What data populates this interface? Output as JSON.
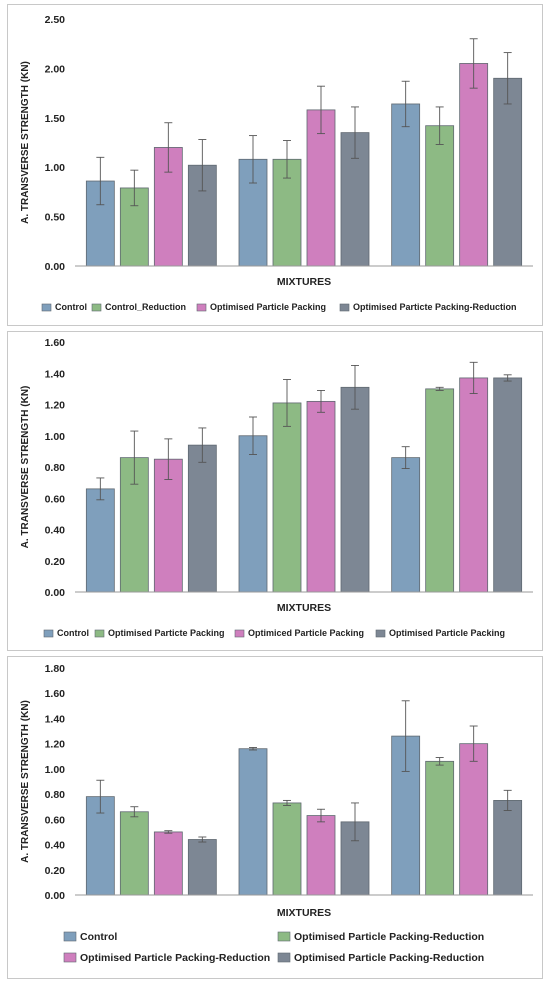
{
  "chart_data": [
    {
      "type": "bar",
      "categories": [
        "",
        "",
        ""
      ],
      "xlabel": "MIXTURES",
      "ylabel": "A. TRANSVERSE STRENGTH (KN)",
      "ylim": [
        0,
        2.5
      ],
      "yticks": [
        "0.00",
        "0.50",
        "1.00",
        "1.50",
        "2.00",
        "2.50"
      ],
      "grid": false,
      "legend": "bottom",
      "series": [
        {
          "name": "Control",
          "color": "#7f9fbc",
          "values": [
            0.86,
            1.08,
            1.64
          ],
          "errors": [
            0.24,
            0.24,
            0.23
          ]
        },
        {
          "name": "Control_Reduction",
          "color": "#8dba84",
          "values": [
            0.79,
            1.08,
            1.42
          ],
          "errors": [
            0.18,
            0.19,
            0.19
          ]
        },
        {
          "name": "Optimised Particle Packing",
          "color": "#cf7fbe",
          "values": [
            1.2,
            1.58,
            2.05
          ],
          "errors": [
            0.25,
            0.24,
            0.25
          ]
        },
        {
          "name": "Optimised Particte Packing-Reduction",
          "color": "#7d8794",
          "values": [
            1.02,
            1.35,
            1.9
          ],
          "errors": [
            0.26,
            0.26,
            0.26
          ]
        }
      ]
    },
    {
      "type": "bar",
      "categories": [
        "",
        "",
        ""
      ],
      "xlabel": "MIXTURES",
      "ylabel": "A. TRANSVERSE STRENGTH (KN)",
      "ylim": [
        0,
        1.6
      ],
      "yticks": [
        "0.00",
        "0.20",
        "0.40",
        "0.60",
        "0.80",
        "1.00",
        "1.20",
        "1.40",
        "1.60"
      ],
      "grid": false,
      "legend": "bottom",
      "series": [
        {
          "name": "Control",
          "color": "#7f9fbc",
          "values": [
            0.66,
            1.0,
            0.86
          ],
          "errors": [
            0.07,
            0.12,
            0.07
          ]
        },
        {
          "name": "Optimised Particte Packing",
          "color": "#8dba84",
          "values": [
            0.86,
            1.21,
            1.3
          ],
          "errors": [
            0.17,
            0.15,
            0.01
          ]
        },
        {
          "name": "Optimiced Particle Packing",
          "color": "#cf7fbe",
          "values": [
            0.85,
            1.22,
            1.37
          ],
          "errors": [
            0.13,
            0.07,
            0.1
          ]
        },
        {
          "name": "Optimised Particle Packing",
          "color": "#7d8794",
          "values": [
            0.94,
            1.31,
            1.37
          ],
          "errors": [
            0.11,
            0.14,
            0.02
          ]
        }
      ]
    },
    {
      "type": "bar",
      "categories": [
        "",
        "",
        ""
      ],
      "xlabel": "MIXTURES",
      "ylabel": "A. TRANSVERSE STRENGTH (KN)",
      "ylim": [
        0,
        1.8
      ],
      "yticks": [
        "0.00",
        "0.20",
        "0.40",
        "0.60",
        "0.80",
        "1.00",
        "1.20",
        "1.40",
        "1.60",
        "1.80"
      ],
      "grid": false,
      "legend": "bottom",
      "series": [
        {
          "name": "Control",
          "color": "#7f9fbc",
          "values": [
            0.78,
            1.16,
            1.26
          ],
          "errors": [
            0.13,
            0.01,
            0.28
          ]
        },
        {
          "name": "Optimised Particle Packing-Reduction",
          "color": "#8dba84",
          "values": [
            0.66,
            0.73,
            1.06
          ],
          "errors": [
            0.04,
            0.02,
            0.03
          ]
        },
        {
          "name": "Optimised Particle Packing-Reduction",
          "color": "#cf7fbe",
          "values": [
            0.5,
            0.63,
            1.2
          ],
          "errors": [
            0.01,
            0.05,
            0.14
          ]
        },
        {
          "name": "Optimised Particle Packing-Reduction",
          "color": "#7d8794",
          "values": [
            0.44,
            0.58,
            0.75
          ],
          "errors": [
            0.02,
            0.15,
            0.08
          ]
        }
      ]
    }
  ]
}
